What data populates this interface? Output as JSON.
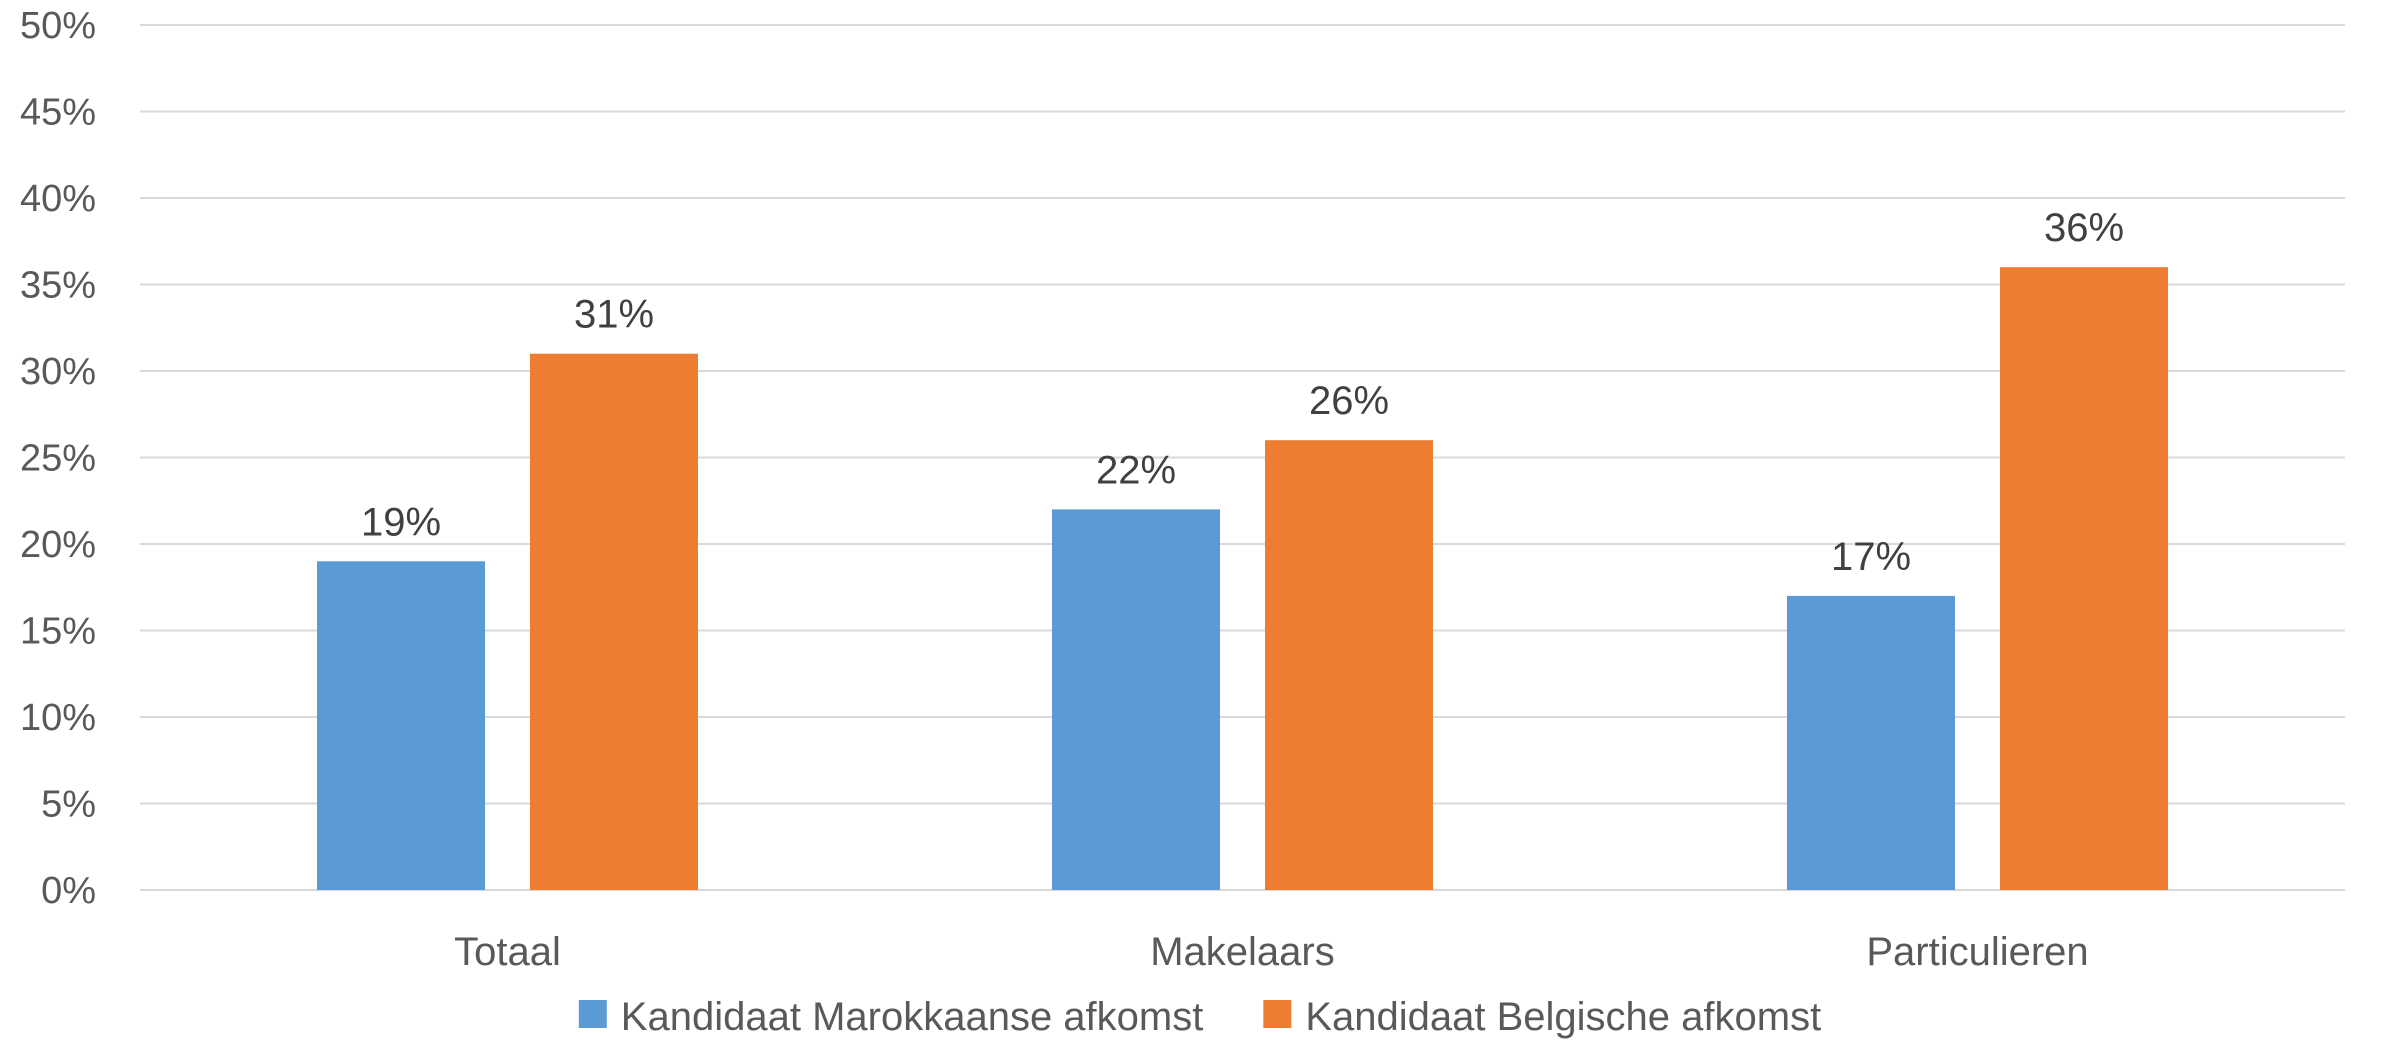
{
  "chart_data": {
    "type": "bar",
    "categories": [
      "Totaal",
      "Makelaars",
      "Particulieren"
    ],
    "series": [
      {
        "name": "Kandidaat Marokkaanse afkomst",
        "values": [
          19,
          22,
          17
        ],
        "color": "#5b9bd5"
      },
      {
        "name": "Kandidaat Belgische afkomst",
        "values": [
          31,
          26,
          36
        ],
        "color": "#ed7d31"
      }
    ],
    "ylim": [
      0,
      50
    ],
    "yticks": [
      0,
      5,
      10,
      15,
      20,
      25,
      30,
      35,
      40,
      45,
      50
    ],
    "value_suffix": "%",
    "grid": true,
    "legend_position": "bottom"
  }
}
